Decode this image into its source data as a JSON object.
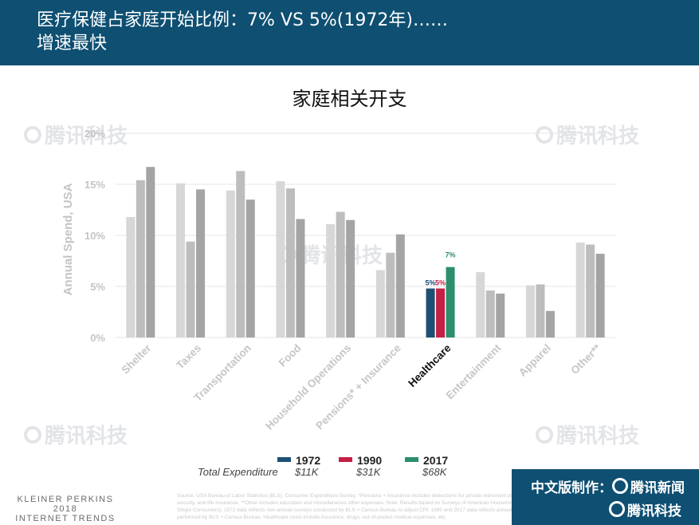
{
  "header": {
    "line1": "医疗保健占家庭开始比例：7% VS 5%(1972年)……",
    "line2": "增速最快"
  },
  "chart_data": {
    "type": "bar",
    "title": "家庭相关开支",
    "ylabel": "Annual Spend, USA",
    "ylim": [
      0,
      20
    ],
    "yticks": [
      "0%",
      "5%",
      "10%",
      "15%",
      "20%"
    ],
    "grid": true,
    "categories": [
      "Shelter",
      "Taxes",
      "Transportation",
      "Food",
      "Household Operations",
      "Pensions* + Insurance",
      "Healthcare",
      "Entertainment",
      "Apparel",
      "Other**"
    ],
    "highlight_category": "Healthcare",
    "series": [
      {
        "name": "1972",
        "values": [
          11.8,
          15.1,
          14.4,
          15.3,
          11.1,
          6.6,
          4.8,
          6.4,
          5.1,
          9.3
        ],
        "highlight_color": "#1d4f73"
      },
      {
        "name": "1990",
        "values": [
          15.4,
          9.4,
          16.3,
          14.6,
          12.3,
          8.3,
          4.8,
          4.6,
          5.2,
          9.1
        ],
        "highlight_color": "#c41f45"
      },
      {
        "name": "2017",
        "values": [
          16.7,
          14.5,
          13.5,
          11.6,
          11.5,
          10.1,
          6.9,
          4.3,
          2.6,
          8.2
        ],
        "highlight_color": "#2b8f6d"
      }
    ],
    "series_colors": [
      "#d7d7d7",
      "#bdbdbd",
      "#a4a4a4"
    ],
    "data_labels": [
      {
        "category": "Healthcare",
        "series": "1972",
        "text": "5%"
      },
      {
        "category": "Healthcare",
        "series": "1990",
        "text": "5%"
      },
      {
        "category": "Healthcare",
        "series": "2017",
        "text": "7%"
      }
    ],
    "legend": {
      "placement": "bottom",
      "row_label": "Total Expenditure",
      "items": [
        {
          "name": "1972",
          "total": "$11K"
        },
        {
          "name": "1990",
          "total": "$31K"
        },
        {
          "name": "2017",
          "total": "$68K"
        }
      ]
    }
  },
  "footer": {
    "brand_lines": [
      "KLEINER PERKINS",
      "2018",
      "INTERNET TRENDS"
    ],
    "source_text": "Source: USA Bureau of Labor Statistics (BLS), Consumer Expenditure Survey. *Pensions + Insurance includes deductions for private retirement plans and social security, and life insurance. **Other includes education and miscellaneous other expenses. Note: Results based on Surveys of American Households (Families & Single Consumers). 1972 data reflects non-annual surveys conducted by BLS + Census Bureau to adjust CPI. 1990 and 2017 data reflects annual Survey performed by BLS + Census Bureau. Healthcare costs include insurance, drugs, out-of-pocket medical expenses, etc.",
    "badge_line1": "中文版制作：",
    "badge_brand1": "腾讯新闻",
    "badge_brand2": "腾讯科技"
  },
  "watermark_text": "腾讯科技"
}
